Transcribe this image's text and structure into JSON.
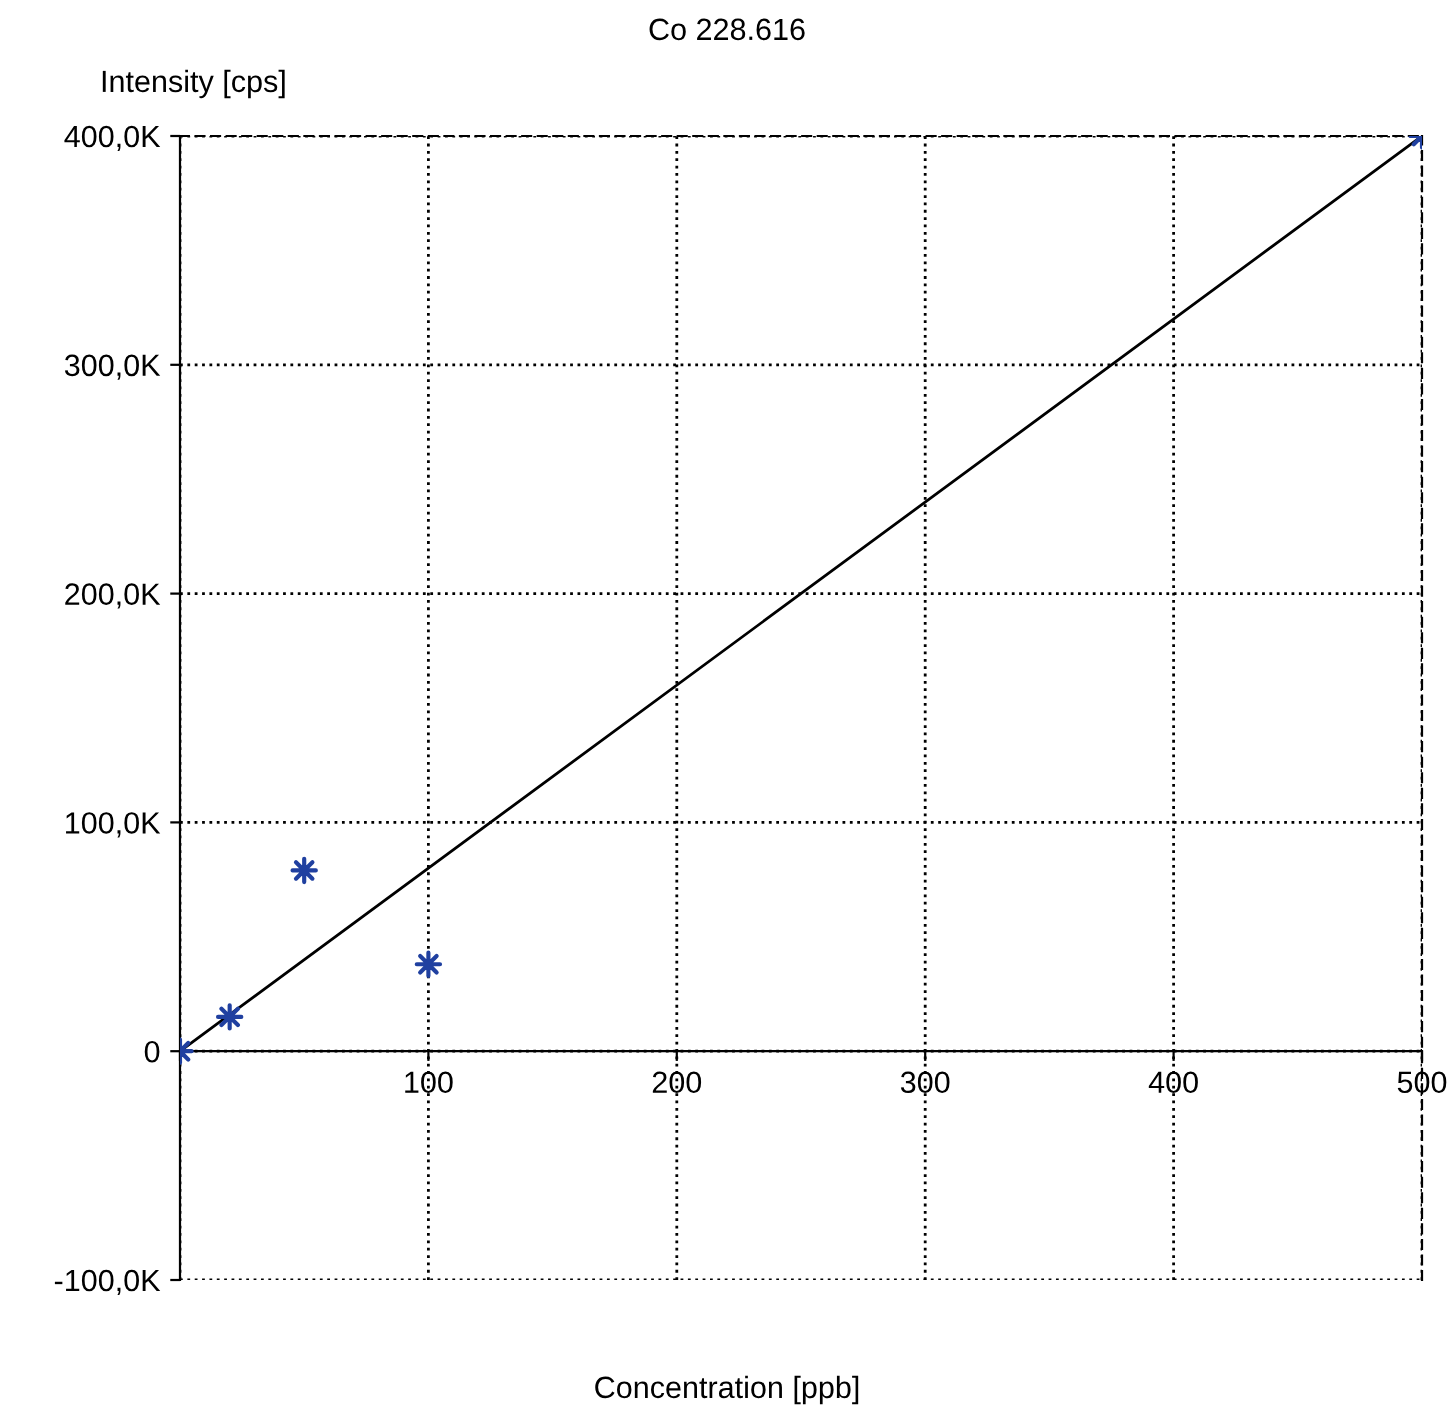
{
  "chart_data": {
    "type": "scatter",
    "title": "Co 228.616",
    "xlabel": "Concentration [ppb]",
    "ylabel": "Intensity [cps]",
    "xlim": [
      0,
      500
    ],
    "ylim": [
      -100000,
      400000
    ],
    "xticks": [
      {
        "value": 0,
        "label": null
      },
      100,
      200,
      300,
      400,
      500
    ],
    "yticks": [
      {
        "value": -100000,
        "label": "-100,0K"
      },
      0,
      {
        "value": 100000,
        "label": "100,0K"
      },
      {
        "value": 200000,
        "label": "200,0K"
      },
      {
        "value": 300000,
        "label": "300,0K"
      },
      {
        "value": 400000,
        "label": "400,0K"
      }
    ],
    "grid": true,
    "series": [
      {
        "color": "#2040a0",
        "marker": "star",
        "x": [
          0,
          20,
          50,
          100,
          500
        ],
        "values": [
          0,
          15000,
          79000,
          38000,
          400000
        ]
      },
      {
        "type": "line",
        "color": "#000000",
        "marker": "none",
        "x": [
          0,
          500
        ],
        "values": [
          0,
          400000
        ],
        "line_style": "solid"
      }
    ]
  }
}
